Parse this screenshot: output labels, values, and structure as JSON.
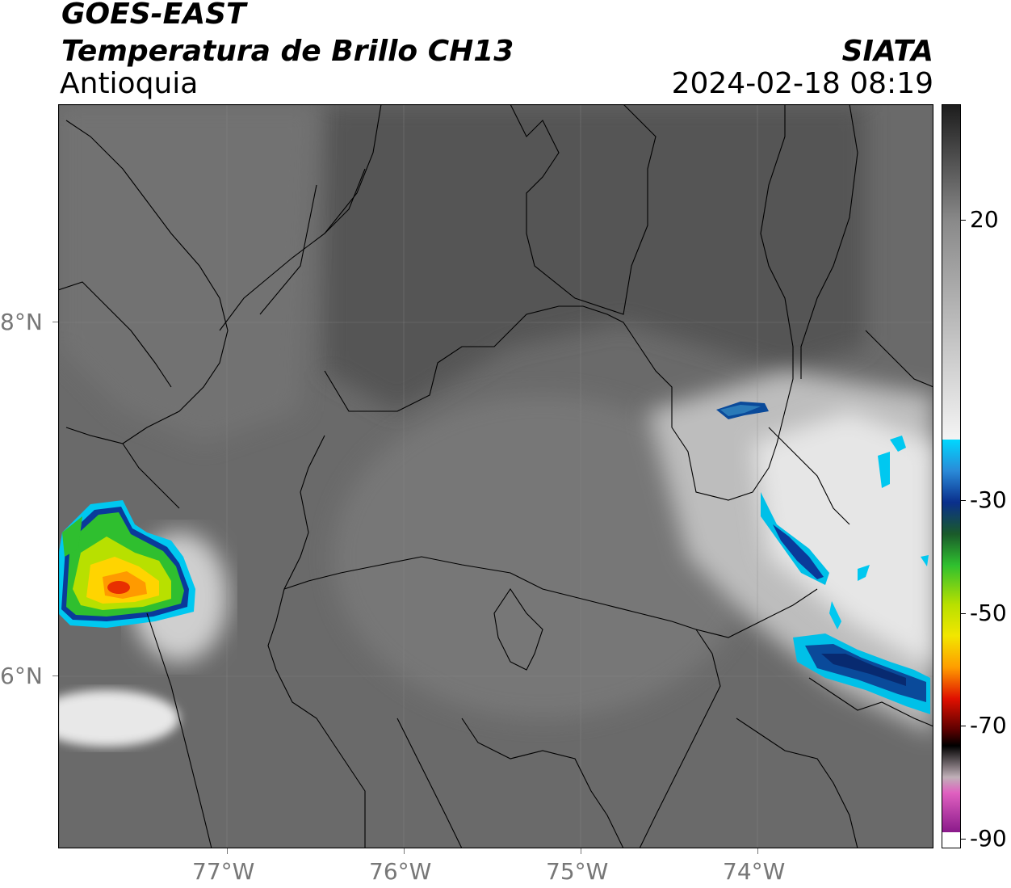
{
  "header": {
    "satellite": "GOES-EAST",
    "product": "Temperatura de Brillo CH13",
    "region": "Antioquia",
    "organization": "SIATA",
    "datetime": "2024-02-18 08:19"
  },
  "map": {
    "lon_range": [
      -77.95,
      -73.0
    ],
    "lat_range": [
      5.0,
      9.2
    ],
    "x_ticks": [
      "77°W",
      "76°W",
      "75°W",
      "74°W"
    ],
    "y_ticks": [
      "8°N",
      "6°N"
    ]
  },
  "colorbar": {
    "ticks": [
      "20",
      "-30",
      "-50",
      "-70",
      "-90"
    ],
    "colors": {
      "grey_low": "#1c1c1c",
      "grey_high": "#f0f0f0",
      "cyan": "#00d8ff",
      "blue_dark": "#0a2f8c",
      "green": "#2fc02f",
      "yellow": "#f2e600",
      "orange": "#ff9d00",
      "red": "#e01000",
      "black": "#000000",
      "pink": "#e060c0",
      "purple": "#8a1a8a"
    }
  }
}
